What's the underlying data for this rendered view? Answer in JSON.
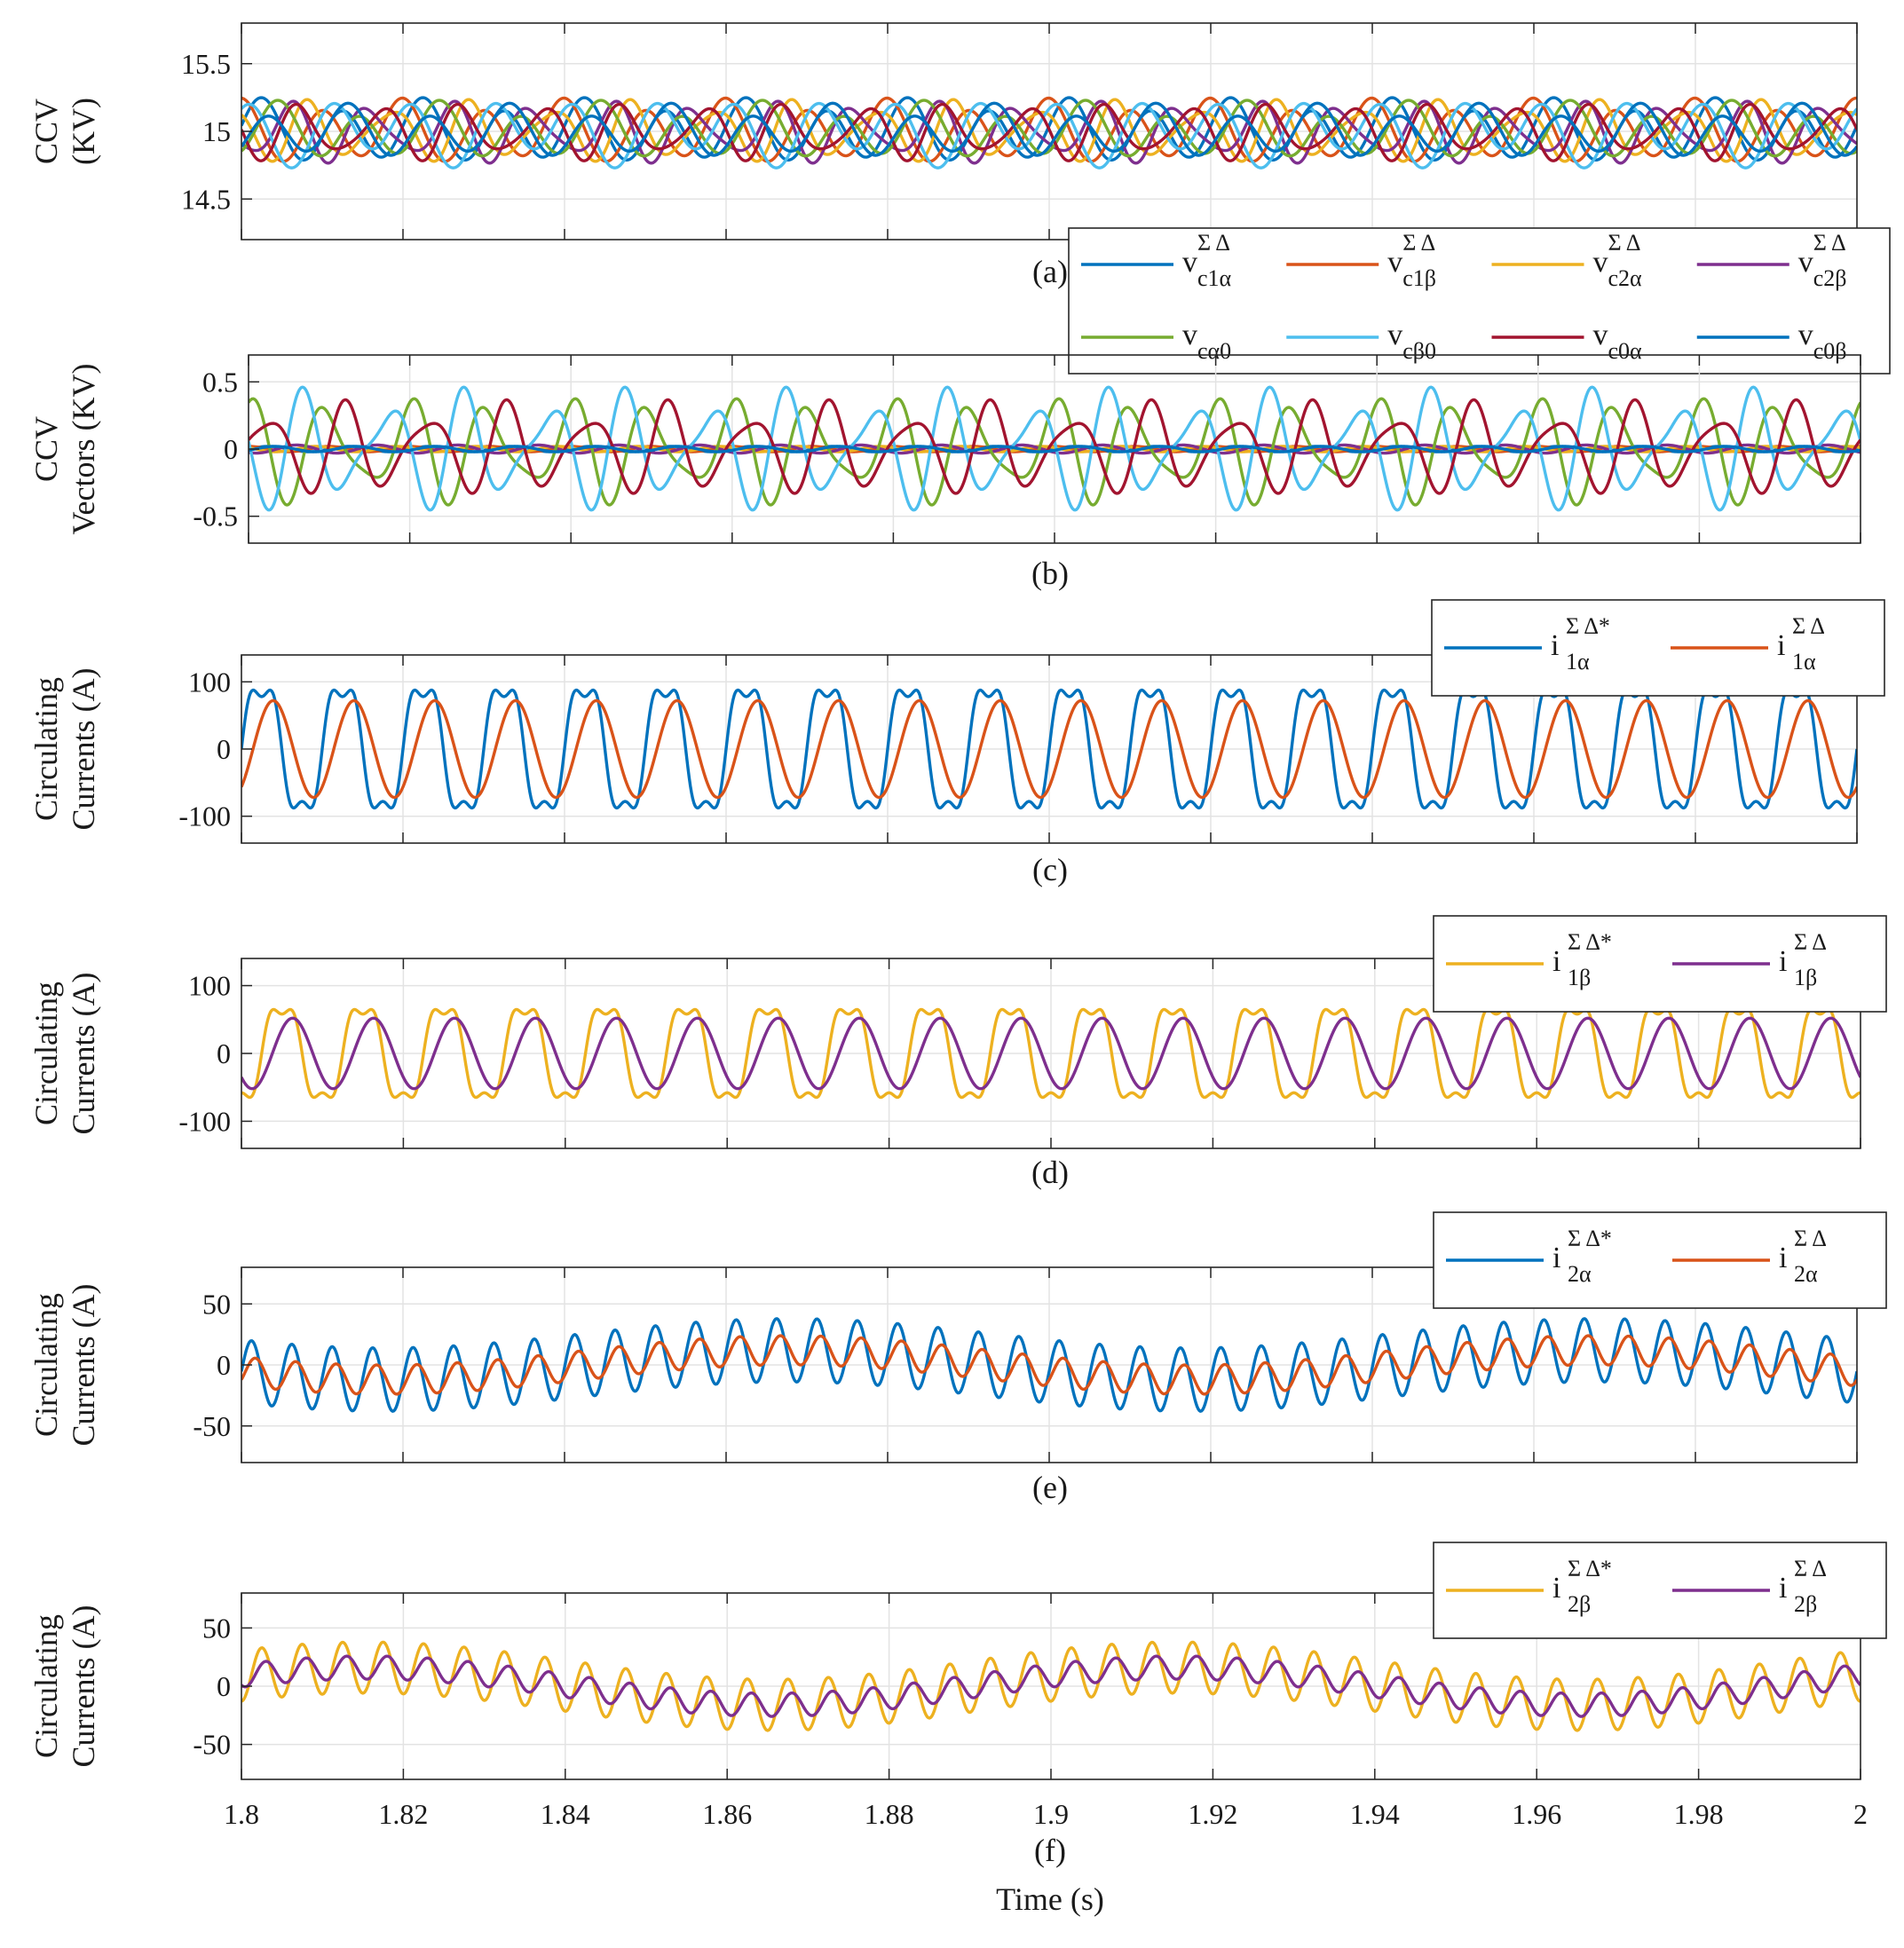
{
  "chart_data": [
    {
      "panel": "a",
      "type": "line",
      "caption": "(a)",
      "ylabel": [
        "CCV",
        "(KV)"
      ],
      "ylim": [
        14.2,
        15.8
      ],
      "yticks": [
        14.5,
        15,
        15.5
      ],
      "ytick_labels": [
        "14.5",
        "15",
        "15.5"
      ],
      "xlim": [
        1.8,
        2.0
      ],
      "grid": true,
      "legend": {
        "placement": "bottom-right",
        "columns": 4,
        "entries": [
          {
            "base": "v",
            "sup": "Σ Δ",
            "sub": "c1α",
            "color": "#0072BD"
          },
          {
            "base": "v",
            "sup": "Σ Δ",
            "sub": "c1β",
            "color": "#D95319"
          },
          {
            "base": "v",
            "sup": "Σ Δ",
            "sub": "c2α",
            "color": "#EDB120"
          },
          {
            "base": "v",
            "sup": "Σ Δ",
            "sub": "c2β",
            "color": "#7E2F8E"
          },
          {
            "base": "v",
            "sup": "",
            "sub": "cα0",
            "color": "#77AC30"
          },
          {
            "base": "v",
            "sup": "",
            "sub": "cβ0",
            "color": "#4DBEEE"
          },
          {
            "base": "v",
            "sup": "",
            "sub": "c0α",
            "color": "#A2142F"
          },
          {
            "base": "v",
            "sup": "",
            "sub": "c0β",
            "color": "#0072BD"
          }
        ]
      },
      "series": [
        {
          "name": "v_c1α^ΣΔ",
          "color": "#0072BD",
          "offset": 15.0,
          "components": [
            {
              "amp": 0.2,
              "freq": 100,
              "phase": 0.0
            },
            {
              "amp": 0.05,
              "freq": 50,
              "phase": 1.0
            }
          ]
        },
        {
          "name": "v_c1β^ΣΔ",
          "color": "#D95319",
          "offset": 15.0,
          "components": [
            {
              "amp": 0.2,
              "freq": 100,
              "phase": 1.57
            },
            {
              "amp": 0.05,
              "freq": 50,
              "phase": 2.0
            }
          ]
        },
        {
          "name": "v_c2α^ΣΔ",
          "color": "#EDB120",
          "offset": 15.0,
          "components": [
            {
              "amp": 0.18,
              "freq": 100,
              "phase": 2.6
            },
            {
              "amp": 0.06,
              "freq": 150,
              "phase": 0.5
            }
          ]
        },
        {
          "name": "v_c2β^ΣΔ",
          "color": "#7E2F8E",
          "offset": 15.0,
          "components": [
            {
              "amp": 0.18,
              "freq": 100,
              "phase": 4.1
            },
            {
              "amp": 0.06,
              "freq": 150,
              "phase": 1.2
            }
          ]
        },
        {
          "name": "v_cα0",
          "color": "#77AC30",
          "offset": 15.0,
          "components": [
            {
              "amp": 0.17,
              "freq": 100,
              "phase": 5.0
            },
            {
              "amp": 0.06,
              "freq": 50,
              "phase": 0.3
            }
          ]
        },
        {
          "name": "v_cβ0",
          "color": "#4DBEEE",
          "offset": 15.0,
          "components": [
            {
              "amp": 0.2,
              "freq": 100,
              "phase": 0.8
            },
            {
              "amp": 0.07,
              "freq": 50,
              "phase": 2.8
            }
          ]
        },
        {
          "name": "v_c0α",
          "color": "#A2142F",
          "offset": 15.0,
          "components": [
            {
              "amp": 0.17,
              "freq": 100,
              "phase": 3.3
            },
            {
              "amp": 0.05,
              "freq": 150,
              "phase": 2.2
            }
          ]
        },
        {
          "name": "v_c0β",
          "color": "#0072BD",
          "offset": 15.0,
          "components": [
            {
              "amp": 0.16,
              "freq": 100,
              "phase": 5.8
            },
            {
              "amp": 0.05,
              "freq": 50,
              "phase": 4.0
            }
          ]
        }
      ]
    },
    {
      "panel": "b",
      "type": "line",
      "caption": "(b)",
      "ylabel": [
        "CCV",
        "Vectors (KV)"
      ],
      "ylim": [
        -0.7,
        0.7
      ],
      "yticks": [
        -0.5,
        0,
        0.5
      ],
      "ytick_labels": [
        "-0.5",
        "0",
        "0.5"
      ],
      "xlim": [
        1.8,
        2.0
      ],
      "grid": true,
      "series": [
        {
          "name": "v_c1α^ΣΔ",
          "color": "#0072BD",
          "offset": 0,
          "components": [
            {
              "amp": 0.02,
              "freq": 100,
              "phase": 0.0
            }
          ]
        },
        {
          "name": "v_c1β^ΣΔ",
          "color": "#D95319",
          "offset": 0,
          "components": [
            {
              "amp": 0.02,
              "freq": 100,
              "phase": 1.57
            }
          ]
        },
        {
          "name": "v_c2α^ΣΔ",
          "color": "#EDB120",
          "offset": 0,
          "components": [
            {
              "amp": 0.02,
              "freq": 100,
              "phase": 2.6
            }
          ]
        },
        {
          "name": "v_c2β^ΣΔ",
          "color": "#7E2F8E",
          "offset": 0,
          "components": [
            {
              "amp": 0.03,
              "freq": 100,
              "phase": 4.1
            }
          ]
        },
        {
          "name": "v_cα0",
          "color": "#77AC30",
          "offset": 0,
          "components": [
            {
              "amp": 0.3,
              "freq": 100,
              "phase": 1.6
            },
            {
              "amp": 0.12,
              "freq": 150,
              "phase": 0.4
            }
          ]
        },
        {
          "name": "v_cβ0",
          "color": "#4DBEEE",
          "offset": 0,
          "components": [
            {
              "amp": 0.33,
              "freq": 100,
              "phase": 3.4
            },
            {
              "amp": 0.15,
              "freq": 150,
              "phase": 1.9
            }
          ]
        },
        {
          "name": "v_c0α",
          "color": "#A2142F",
          "offset": 0,
          "components": [
            {
              "amp": 0.27,
              "freq": 100,
              "phase": 0.2
            },
            {
              "amp": 0.1,
              "freq": 150,
              "phase": 3.0
            }
          ]
        },
        {
          "name": "v_c0β",
          "color": "#0072BD",
          "offset": 0,
          "components": [
            {
              "amp": 0.02,
              "freq": 100,
              "phase": 5.8
            }
          ]
        }
      ]
    },
    {
      "panel": "c",
      "type": "line",
      "caption": "(c)",
      "ylabel": [
        "Circulating",
        "Currents (A)"
      ],
      "ylim": [
        -140,
        140
      ],
      "yticks": [
        -100,
        0,
        100
      ],
      "ytick_labels": [
        "-100",
        "0",
        "100"
      ],
      "xlim": [
        1.8,
        2.0
      ],
      "grid": true,
      "legend": {
        "placement": "top-right",
        "columns": 2,
        "entries": [
          {
            "base": "i",
            "sup": "Σ Δ*",
            "sub": "1α",
            "color": "#0072BD"
          },
          {
            "base": "i",
            "sup": "Σ Δ",
            "sub": "1α",
            "color": "#D95319"
          }
        ]
      },
      "series": [
        {
          "name": "i_1α^ΣΔ*",
          "color": "#0072BD",
          "offset": 0,
          "components": [
            {
              "amp": 100,
              "freq": 100,
              "phase": 0.0
            },
            {
              "amp": 22,
              "freq": 300,
              "phase": 0.0
            }
          ]
        },
        {
          "name": "i_1α^ΣΔ",
          "color": "#D95319",
          "offset": 0,
          "components": [
            {
              "amp": 72,
              "freq": 100,
              "phase": -0.9
            }
          ]
        }
      ]
    },
    {
      "panel": "d",
      "type": "line",
      "caption": "(d)",
      "ylabel": [
        "Circulating",
        "Currents (A)"
      ],
      "ylim": [
        -140,
        140
      ],
      "yticks": [
        -100,
        0,
        100
      ],
      "ytick_labels": [
        "-100",
        "0",
        "100"
      ],
      "xlim": [
        1.8,
        2.0
      ],
      "grid": true,
      "legend": {
        "placement": "top-right",
        "columns": 2,
        "entries": [
          {
            "base": "i",
            "sup": "Σ Δ*",
            "sub": "1β",
            "color": "#EDB120"
          },
          {
            "base": "i",
            "sup": "Σ Δ",
            "sub": "1β",
            "color": "#7E2F8E"
          }
        ]
      },
      "series": [
        {
          "name": "i_1β^ΣΔ*",
          "color": "#EDB120",
          "offset": 0,
          "components": [
            {
              "amp": 74,
              "freq": 100,
              "phase": -1.57
            },
            {
              "amp": 16,
              "freq": 300,
              "phase": -4.71
            }
          ]
        },
        {
          "name": "i_1β^ΣΔ",
          "color": "#7E2F8E",
          "offset": 0,
          "components": [
            {
              "amp": 52,
              "freq": 100,
              "phase": -2.4
            }
          ]
        }
      ]
    },
    {
      "panel": "e",
      "type": "line",
      "caption": "(e)",
      "ylabel": [
        "Circulating",
        "Currents (A)"
      ],
      "ylim": [
        -80,
        80
      ],
      "yticks": [
        -50,
        0,
        50
      ],
      "ytick_labels": [
        "-50",
        "0",
        "50"
      ],
      "xlim": [
        1.8,
        2.0
      ],
      "grid": true,
      "legend": {
        "placement": "top-right",
        "columns": 2,
        "entries": [
          {
            "base": "i",
            "sup": "Σ Δ*",
            "sub": "2α",
            "color": "#0072BD"
          },
          {
            "base": "i",
            "sup": "Σ Δ",
            "sub": "2α",
            "color": "#D95319"
          }
        ]
      },
      "series": [
        {
          "name": "i_2α^ΣΔ*",
          "color": "#0072BD",
          "offset": 0,
          "components": [
            {
              "amp": 26,
              "freq": 200,
              "phase": 0.0
            },
            {
              "amp": 12,
              "freq": 10,
              "phase": 3.6
            }
          ]
        },
        {
          "name": "i_2α^ΣΔ",
          "color": "#D95319",
          "offset": 0,
          "components": [
            {
              "amp": 12,
              "freq": 200,
              "phase": -0.6
            },
            {
              "amp": 12,
              "freq": 10,
              "phase": 3.6
            }
          ]
        }
      ]
    },
    {
      "panel": "f",
      "type": "line",
      "caption": "(f)",
      "ylabel": [
        "Circulating",
        "Currents (A)"
      ],
      "ylim": [
        -80,
        80
      ],
      "yticks": [
        -50,
        0,
        50
      ],
      "ytick_labels": [
        "-50",
        "0",
        "50"
      ],
      "xlim": [
        1.8,
        2.0
      ],
      "xticks": [
        1.8,
        1.82,
        1.84,
        1.86,
        1.88,
        1.9,
        1.92,
        1.94,
        1.96,
        1.98,
        2.0
      ],
      "xtick_labels": [
        "1.8",
        "1.82",
        "1.84",
        "1.86",
        "1.88",
        "1.9",
        "1.92",
        "1.94",
        "1.96",
        "1.98",
        "2"
      ],
      "xlabel": "Time (s)",
      "grid": true,
      "legend": {
        "placement": "top-right",
        "columns": 2,
        "entries": [
          {
            "base": "i",
            "sup": "Σ Δ*",
            "sub": "2β",
            "color": "#EDB120"
          },
          {
            "base": "i",
            "sup": "Σ Δ",
            "sub": "2β",
            "color": "#7E2F8E"
          }
        ]
      },
      "series": [
        {
          "name": "i_2β^ΣΔ*",
          "color": "#EDB120",
          "offset": 0,
          "components": [
            {
              "amp": 22,
              "freq": 200,
              "phase": -1.57
            },
            {
              "amp": 16,
              "freq": 10,
              "phase": 0.6
            }
          ]
        },
        {
          "name": "i_2β^ΣΔ",
          "color": "#7E2F8E",
          "offset": 0,
          "components": [
            {
              "amp": 10,
              "freq": 200,
              "phase": -2.2
            },
            {
              "amp": 16,
              "freq": 10,
              "phase": 0.6
            }
          ]
        }
      ]
    }
  ]
}
